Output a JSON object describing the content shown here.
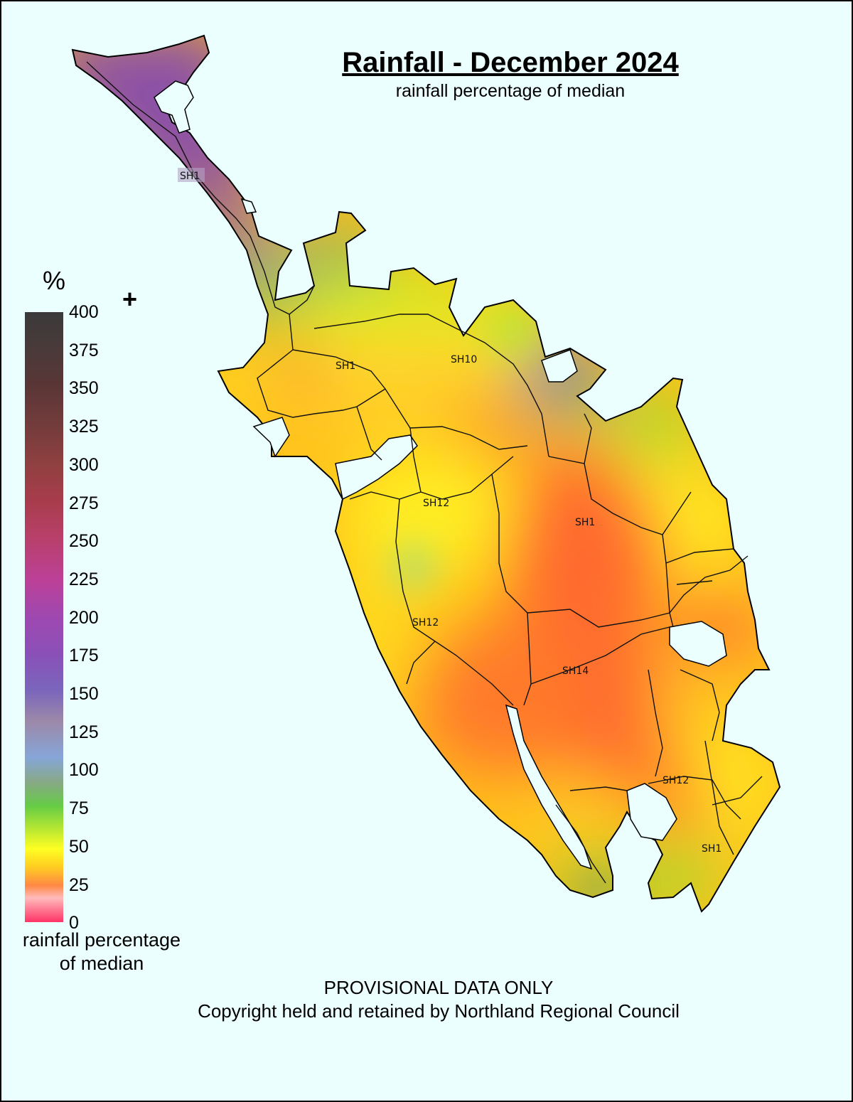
{
  "title": "Rainfall - December 2024",
  "subtitle": "rainfall percentage of median",
  "legend": {
    "unit_symbol": "%",
    "overflow_symbol": "+",
    "caption_line1": "rainfall percentage",
    "caption_line2": "of median",
    "ticks": [
      "400",
      "375",
      "350",
      "325",
      "300",
      "275",
      "250",
      "225",
      "200",
      "175",
      "150",
      "125",
      "100",
      "75",
      "50",
      "25",
      "0"
    ]
  },
  "road_labels": [
    "SH1",
    "SH1",
    "SH10",
    "SH12",
    "SH1",
    "SH12",
    "SH14",
    "SH12",
    "SH1"
  ],
  "footer": {
    "notice": "PROVISIONAL DATA ONLY",
    "copyright": "Copyright held and retained by Northland Regional Council"
  },
  "colors": {
    "background": "#ebffff",
    "over_150": "#8a50a8",
    "near_100": "#7ab0c8",
    "near_75": "#88dd33",
    "near_50": "#ffee22",
    "near_40": "#ffbb11",
    "near_25": "#ff6a2e"
  }
}
